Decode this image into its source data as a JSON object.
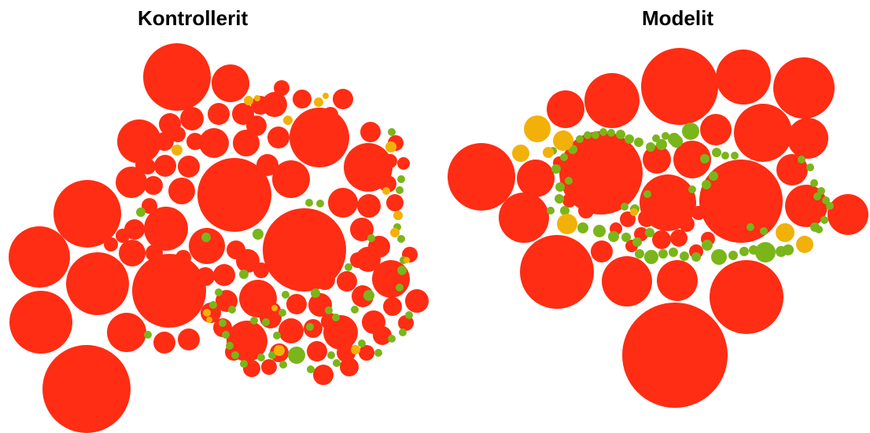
{
  "titles": {
    "left": "Kontrollerit",
    "right": "Modelit"
  },
  "colors": {
    "red": "#fe2d14",
    "green": "#7ab51a",
    "yellow": "#f2b108"
  },
  "clusters": [
    {
      "name": "kontrollerit",
      "counts": {
        "red": 105,
        "green": 49,
        "yellow": 16
      }
    },
    {
      "name": "modelit",
      "counts": {
        "red": 40,
        "green": 66,
        "yellow": 8
      }
    }
  ]
}
